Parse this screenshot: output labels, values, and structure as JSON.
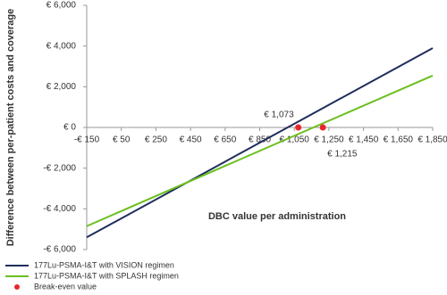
{
  "chart_data": {
    "type": "line",
    "x_label": "DBC value per administration",
    "y_label": "Difference between per-patient costs and coverage",
    "xlim": [
      -150,
      1850
    ],
    "xticks": [
      {
        "value": -150,
        "label": "-€ 150"
      },
      {
        "value": 50,
        "label": "€ 50"
      },
      {
        "value": 250,
        "label": "€ 250"
      },
      {
        "value": 450,
        "label": "€ 450"
      },
      {
        "value": 650,
        "label": "€ 650"
      },
      {
        "value": 850,
        "label": "€ 850"
      },
      {
        "value": 1050,
        "label": "€ 1,050"
      },
      {
        "value": 1250,
        "label": "€ 1,250"
      },
      {
        "value": 1450,
        "label": "€ 1,450"
      },
      {
        "value": 1650,
        "label": "€ 1,650"
      },
      {
        "value": 1850,
        "label": "€ 1,850"
      }
    ],
    "ylim": [
      -6000,
      6000
    ],
    "yticks": [
      {
        "value": -6000,
        "label": "-€ 6,000"
      },
      {
        "value": -4000,
        "label": "-€ 4,000"
      },
      {
        "value": -2000,
        "label": "-€ 2,000"
      },
      {
        "value": 0,
        "label": "€ 0"
      },
      {
        "value": 2000,
        "label": "€ 2,000"
      },
      {
        "value": 4000,
        "label": "€ 4,000"
      },
      {
        "value": 6000,
        "label": "€ 6,000"
      }
    ],
    "grid": false,
    "series": [
      {
        "name": "177Lu-PSMA-I&T with VISION regimen",
        "color": "#1f2d5c",
        "x": [
          -150,
          1850
        ],
        "values": [
          -5400,
          3900
        ]
      },
      {
        "name": "177Lu-PSMA-I&T with SPLASH regimen",
        "color": "#6cbf1f",
        "x": [
          -150,
          1850
        ],
        "values": [
          -4850,
          2550
        ]
      }
    ],
    "break_even": {
      "name": "Break-even value",
      "color": "#e8262a",
      "x": [
        1073,
        1215
      ],
      "values": [
        0,
        0
      ],
      "x_labels": [
        "€ 1,073",
        "€ 1,215"
      ]
    }
  }
}
